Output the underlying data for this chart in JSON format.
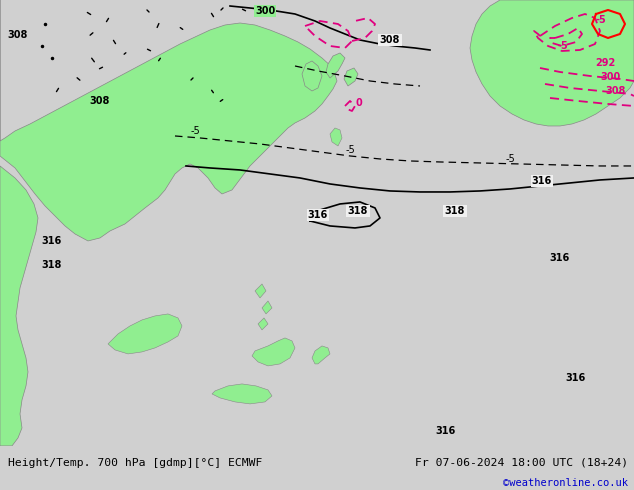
{
  "title_left": "Height/Temp. 700 hPa [gdmp][°C] ECMWF",
  "title_right": "Fr 07-06-2024 18:00 UTC (18+24)",
  "watermark": "©weatheronline.co.uk",
  "watermark_color": "#0000cc",
  "footer_bg": "#d0d0d0",
  "footer_text_color": "#000000",
  "ocean_color": "#f0f0f0",
  "land_color": "#90ee90",
  "fig_width": 6.34,
  "fig_height": 4.9,
  "dpi": 100
}
